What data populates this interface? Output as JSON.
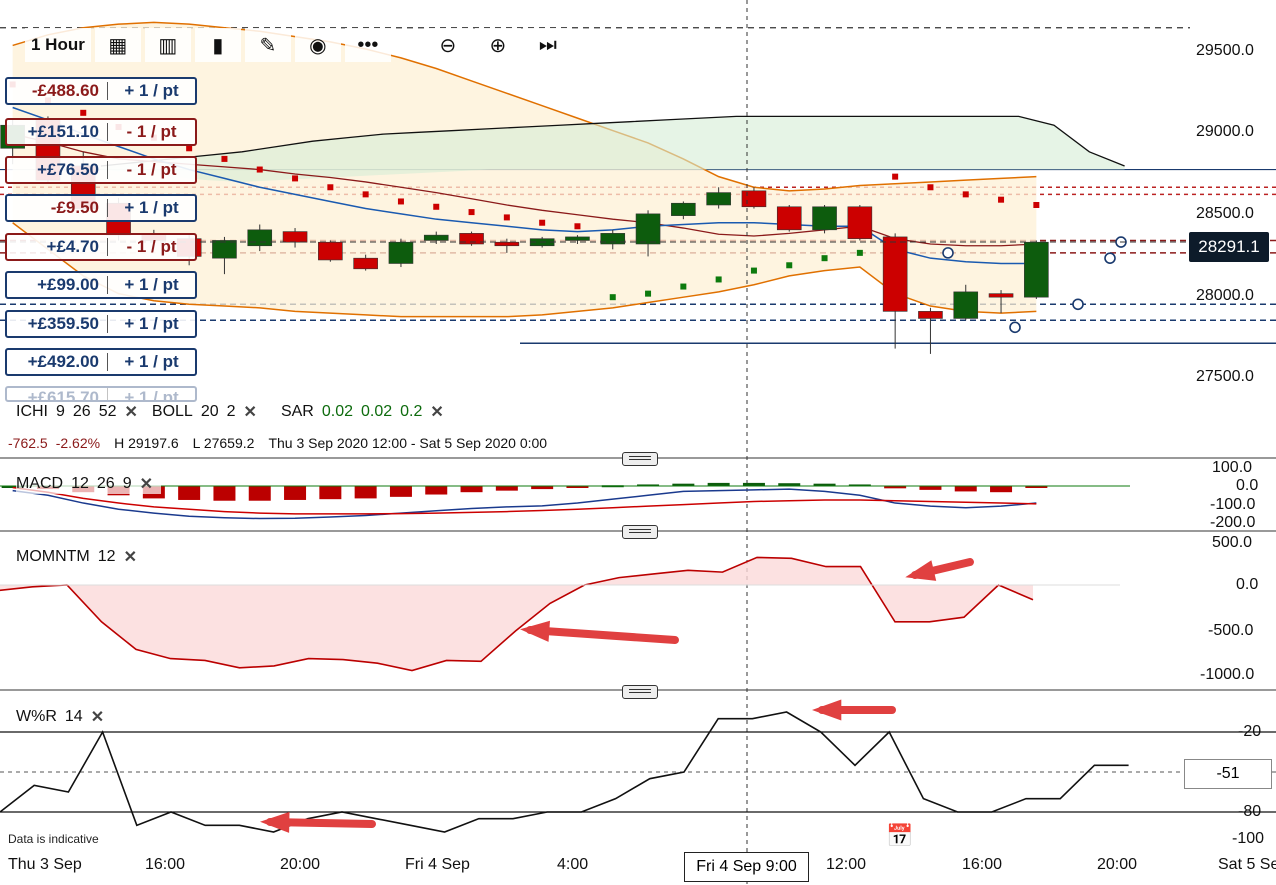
{
  "toolbar": {
    "timeframe": "1 Hour",
    "icons": [
      "grid-icon",
      "report-icon",
      "bar-chart-icon",
      "pencil-icon",
      "eye-icon",
      "more-icon",
      "zoom-out-icon",
      "zoom-in-icon",
      "skip-to-end-icon"
    ]
  },
  "positions": [
    {
      "pnl": "-£488.60",
      "stake": "+ 1 / pt",
      "color": "#8b1a1a",
      "border": "blue"
    },
    {
      "pnl": "+£151.10",
      "stake": "- 1 / pt",
      "color": "#1a3a6e",
      "border": "red"
    },
    {
      "pnl": "+£76.50",
      "stake": "- 1 / pt",
      "color": "#1a3a6e",
      "border": "red"
    },
    {
      "pnl": "-£9.50",
      "stake": "+ 1 / pt",
      "color": "#8b1a1a",
      "border": "blue"
    },
    {
      "pnl": "+£4.70",
      "stake": "- 1 / pt",
      "color": "#1a3a6e",
      "border": "red"
    },
    {
      "pnl": "+£99.00",
      "stake": "+ 1 / pt",
      "color": "#1a3a6e",
      "border": "blue"
    },
    {
      "pnl": "+£359.50",
      "stake": "+ 1 / pt",
      "color": "#1a3a6e",
      "border": "blue"
    },
    {
      "pnl": "+£492.00",
      "stake": "+ 1 / pt",
      "color": "#1a3a6e",
      "border": "blue"
    },
    {
      "pnl": "+£615.70",
      "stake": "+ 1 / pt",
      "color": "#1a3a6e",
      "border": "blue"
    }
  ],
  "indicators": {
    "ichi": {
      "name": "ICHI",
      "p1": "9",
      "p2": "26",
      "p3": "52"
    },
    "boll": {
      "name": "BOLL",
      "p1": "20",
      "p2": "2"
    },
    "sar": {
      "name": "SAR",
      "p1": "0.02",
      "p2": "0.02",
      "p3": "0.2"
    }
  },
  "summary": {
    "change": "-762.5",
    "pct": "-2.62%",
    "high": "H 29197.6",
    "low": "L 27659.2",
    "range": "Thu 3 Sep 2020 12:00 - Sat 5 Sep 2020 0:00"
  },
  "price_axis": [
    "29500.0",
    "29000.0",
    "28500.0",
    "28000.0",
    "27500.0"
  ],
  "current_price": "28291.1",
  "macd": {
    "name": "MACD",
    "p1": "12",
    "p2": "26",
    "p3": "9",
    "axis": [
      "100.0",
      "0.0",
      "-100.0",
      "-200.0"
    ]
  },
  "momentum": {
    "name": "MOMNTM",
    "p1": "12",
    "axis": [
      "500.0",
      "0.0",
      "-500.0",
      "-1000.0"
    ]
  },
  "wr": {
    "name": "W%R",
    "p1": "14",
    "axis": [
      "-20",
      "-80",
      "-100"
    ],
    "current": "-51"
  },
  "footer": {
    "disclaimer": "Data is indicative",
    "time_labels": [
      "Thu 3 Sep",
      "16:00",
      "20:00",
      "Fri 4 Sep",
      "4:00",
      "12:00",
      "16:00",
      "20:00",
      "Sat 5 Se"
    ],
    "crosshair_time": "Fri 4 Sep 9:00"
  },
  "chart_data": {
    "type": "candlestick",
    "price_range": [
      27400,
      29600
    ],
    "candles": [
      {
        "o": 28820,
        "h": 28980,
        "l": 28730,
        "c": 28950
      },
      {
        "o": 28980,
        "h": 29000,
        "l": 28620,
        "c": 28640
      },
      {
        "o": 28720,
        "h": 28800,
        "l": 28450,
        "c": 28480
      },
      {
        "o": 28510,
        "h": 28540,
        "l": 28300,
        "c": 28330
      },
      {
        "o": 28340,
        "h": 28360,
        "l": 28250,
        "c": 28300
      },
      {
        "o": 28310,
        "h": 28330,
        "l": 28160,
        "c": 28210
      },
      {
        "o": 28200,
        "h": 28320,
        "l": 28110,
        "c": 28300
      },
      {
        "o": 28270,
        "h": 28390,
        "l": 28240,
        "c": 28360
      },
      {
        "o": 28350,
        "h": 28370,
        "l": 28260,
        "c": 28290
      },
      {
        "o": 28290,
        "h": 28300,
        "l": 28180,
        "c": 28190
      },
      {
        "o": 28200,
        "h": 28220,
        "l": 28130,
        "c": 28140
      },
      {
        "o": 28170,
        "h": 28310,
        "l": 28150,
        "c": 28290
      },
      {
        "o": 28300,
        "h": 28350,
        "l": 28280,
        "c": 28330
      },
      {
        "o": 28340,
        "h": 28350,
        "l": 28270,
        "c": 28280
      },
      {
        "o": 28290,
        "h": 28310,
        "l": 28230,
        "c": 28270
      },
      {
        "o": 28270,
        "h": 28320,
        "l": 28260,
        "c": 28310
      },
      {
        "o": 28300,
        "h": 28330,
        "l": 28280,
        "c": 28320
      },
      {
        "o": 28280,
        "h": 28360,
        "l": 28250,
        "c": 28340
      },
      {
        "o": 28280,
        "h": 28470,
        "l": 28210,
        "c": 28450
      },
      {
        "o": 28440,
        "h": 28520,
        "l": 28420,
        "c": 28510
      },
      {
        "o": 28500,
        "h": 28600,
        "l": 28480,
        "c": 28570
      },
      {
        "o": 28580,
        "h": 28600,
        "l": 28480,
        "c": 28490
      },
      {
        "o": 28490,
        "h": 28500,
        "l": 28350,
        "c": 28360
      },
      {
        "o": 28360,
        "h": 28500,
        "l": 28340,
        "c": 28490
      },
      {
        "o": 28490,
        "h": 28500,
        "l": 28300,
        "c": 28310
      },
      {
        "o": 28320,
        "h": 28340,
        "l": 27690,
        "c": 27900
      },
      {
        "o": 27900,
        "h": 27920,
        "l": 27660,
        "c": 27860
      },
      {
        "o": 27860,
        "h": 28050,
        "l": 27850,
        "c": 28010
      },
      {
        "o": 28000,
        "h": 28020,
        "l": 27890,
        "c": 27980
      },
      {
        "o": 27980,
        "h": 28300,
        "l": 27970,
        "c": 28290
      }
    ],
    "sar": [
      29180,
      29090,
      29020,
      28940,
      28880,
      28820,
      28760,
      28700,
      28650,
      28600,
      28560,
      28520,
      28490,
      28460,
      28430,
      28400,
      28380,
      27980,
      28000,
      28040,
      28080,
      28130,
      28160,
      28200,
      28230,
      28660,
      28600,
      28560,
      28530,
      28500
    ],
    "macd_hist": [
      0,
      -20,
      -40,
      -60,
      -80,
      -90,
      -95,
      -95,
      -90,
      -85,
      -80,
      -70,
      -55,
      -40,
      -30,
      -20,
      -5,
      5,
      10,
      15,
      20,
      20,
      18,
      15,
      10,
      -15,
      -25,
      -35,
      -40,
      -5
    ],
    "macd_line": [
      -30,
      -60,
      -110,
      -150,
      -175,
      -195,
      -205,
      -210,
      -208,
      -200,
      -190,
      -175,
      -160,
      -145,
      -135,
      -128,
      -110,
      -85,
      -60,
      -35,
      -30,
      -25,
      -20,
      -35,
      -60,
      -110,
      -130,
      -140,
      -130,
      -110
    ],
    "macd_signal": [
      -10,
      -40,
      -80,
      -110,
      -135,
      -150,
      -165,
      -175,
      -180,
      -180,
      -180,
      -178,
      -175,
      -170,
      -165,
      -158,
      -150,
      -140,
      -130,
      -120,
      -110,
      -100,
      -95,
      -90,
      -90,
      -95,
      -100,
      -105,
      -110,
      -115
    ],
    "momentum": [
      -60,
      -20,
      0,
      -400,
      -700,
      -800,
      -820,
      -900,
      -880,
      -800,
      -810,
      -850,
      -930,
      -820,
      -830,
      -500,
      -200,
      0,
      80,
      120,
      160,
      140,
      300,
      290,
      200,
      200,
      -400,
      -400,
      -350,
      0,
      -160
    ],
    "wr": [
      -80,
      -60,
      -65,
      -20,
      -90,
      -80,
      -90,
      -90,
      -95,
      -85,
      -80,
      -85,
      -90,
      -95,
      -85,
      -85,
      -80,
      -80,
      -70,
      -55,
      -50,
      -10,
      -10,
      -5,
      -20,
      -45,
      -20,
      -70,
      -80,
      -80,
      -70,
      -70,
      -45,
      -45
    ]
  }
}
